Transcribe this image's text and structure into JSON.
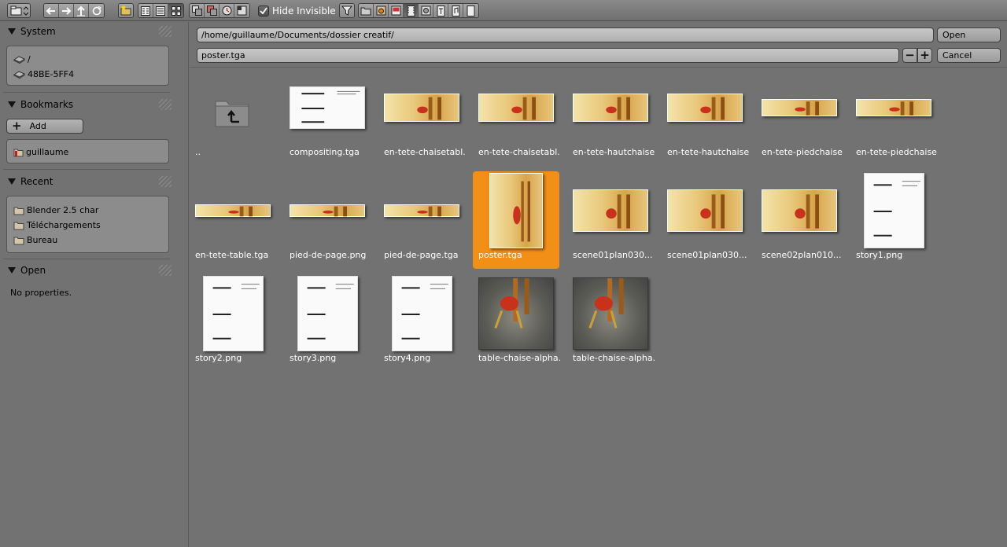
{
  "toolbar": {
    "hide_invisible_label": "Hide Invisible",
    "hide_invisible_checked": true
  },
  "sidebar": {
    "system": {
      "title": "System",
      "items": [
        "/",
        "48BE-5FF4"
      ]
    },
    "bookmarks": {
      "title": "Bookmarks",
      "add_label": "Add",
      "items": [
        "guillaume"
      ]
    },
    "recent": {
      "title": "Recent",
      "items": [
        "Blender 2.5 char",
        "Téléchargements",
        "Bureau"
      ]
    },
    "open": {
      "title": "Open",
      "empty_text": "No properties."
    }
  },
  "browser": {
    "directory": "/home/guillaume/Documents/dossier creatif/",
    "filename": "poster.tga",
    "open_label": "Open",
    "cancel_label": "Cancel",
    "decrement_label": "−",
    "increment_label": "+"
  },
  "files": [
    {
      "name": "..",
      "kind": "parent"
    },
    {
      "name": "compositing.tga",
      "kind": "screen"
    },
    {
      "name": "en-tete-chaisetabl...",
      "kind": "banner"
    },
    {
      "name": "en-tete-chaisetabl...",
      "kind": "banner"
    },
    {
      "name": "en-tete-hautchaise...",
      "kind": "banner"
    },
    {
      "name": "en-tete-hautchaise...",
      "kind": "banner"
    },
    {
      "name": "en-tete-piedchaise...",
      "kind": "banner"
    },
    {
      "name": "en-tete-piedchaise...",
      "kind": "banner"
    },
    {
      "name": "en-tete-table.tga",
      "kind": "banner"
    },
    {
      "name": "pied-de-page.png",
      "kind": "banner"
    },
    {
      "name": "pied-de-page.tga",
      "kind": "banner"
    },
    {
      "name": "poster.tga",
      "kind": "poster",
      "selected": true
    },
    {
      "name": "scene01plan030...",
      "kind": "scene"
    },
    {
      "name": "scene01plan030...",
      "kind": "scene"
    },
    {
      "name": "scene02plan010...",
      "kind": "scene"
    },
    {
      "name": "story1.png",
      "kind": "sheet"
    },
    {
      "name": "story2.png",
      "kind": "sheet"
    },
    {
      "name": "story3.png",
      "kind": "sheet"
    },
    {
      "name": "story4.png",
      "kind": "sheet"
    },
    {
      "name": "table-chaise-alpha...",
      "kind": "render"
    },
    {
      "name": "table-chaise-alpha...",
      "kind": "render"
    }
  ],
  "colors": {
    "selection": "#f18f17",
    "background": "#727272"
  }
}
